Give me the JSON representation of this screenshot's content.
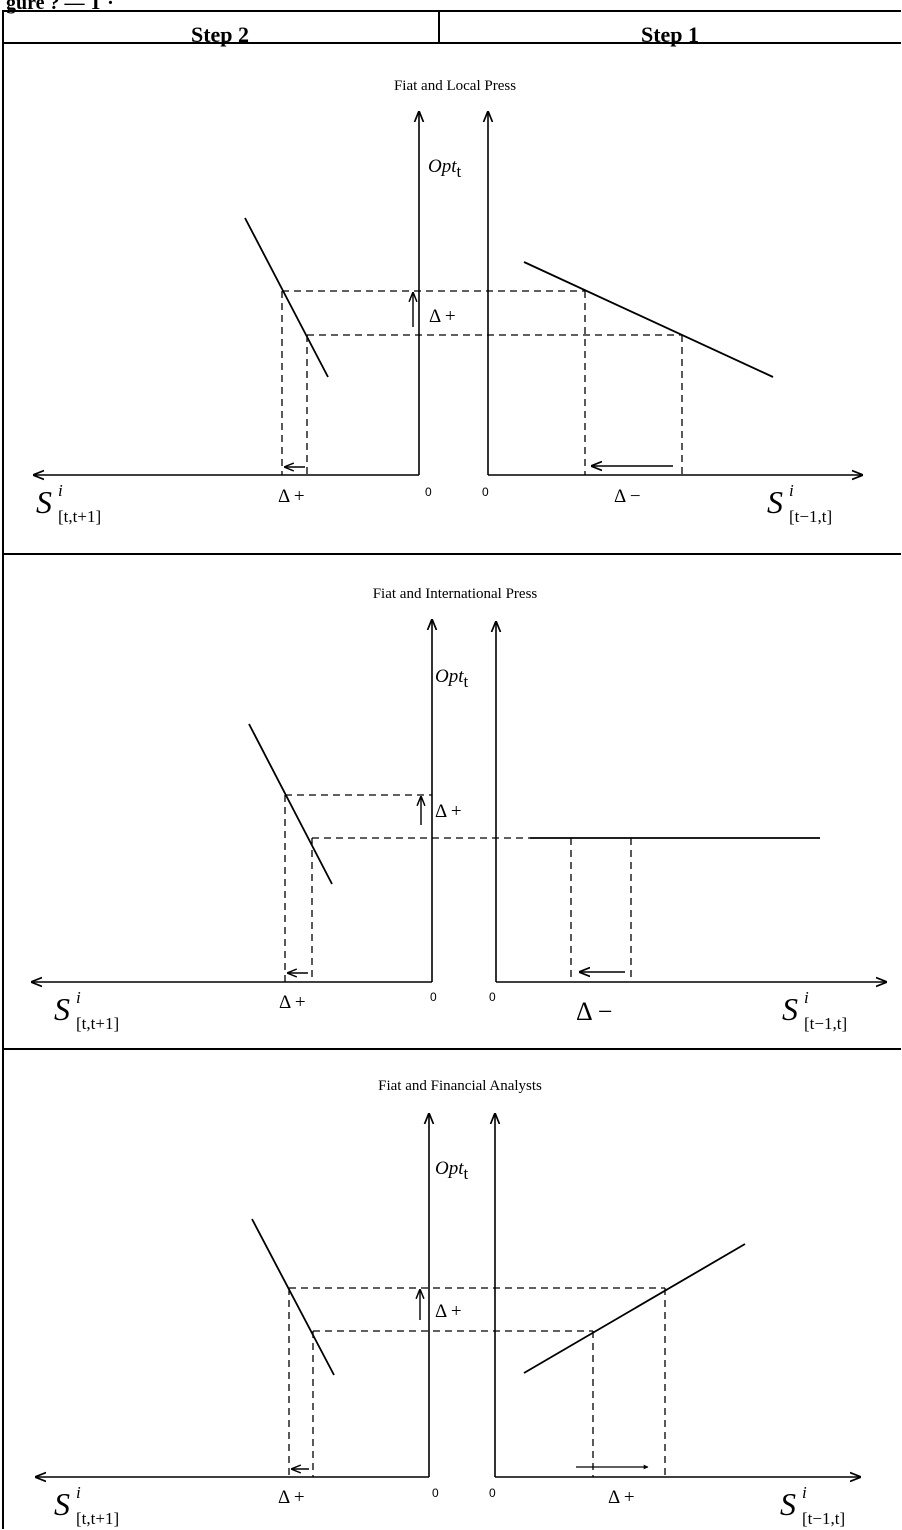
{
  "caption": "gure ? — T   ·  ",
  "headers": {
    "left": "Step 2",
    "right": "Step 1"
  },
  "panels": [
    {
      "title": "Fiat and Local Press",
      "step2_delta": "Δ +",
      "shift_delta": "Δ +",
      "step1_delta": "Δ −"
    },
    {
      "title": "Fiat and International Press",
      "step2_delta": "Δ +",
      "shift_delta": "Δ +",
      "step1_delta": "Δ −"
    },
    {
      "title": "Fiat and Financial Analysts",
      "step2_delta": "Δ +",
      "shift_delta": "Δ +",
      "step1_delta": "Δ +"
    }
  ],
  "axes": {
    "zero": "0",
    "y_label": "Opt",
    "y_label_sub": "t",
    "left_x_label": "S",
    "left_x_sup": "i",
    "left_x_sub": "[t,t+1]",
    "right_x_label": "S",
    "right_x_sup": "i",
    "right_x_sub": "[t−1,t]"
  }
}
